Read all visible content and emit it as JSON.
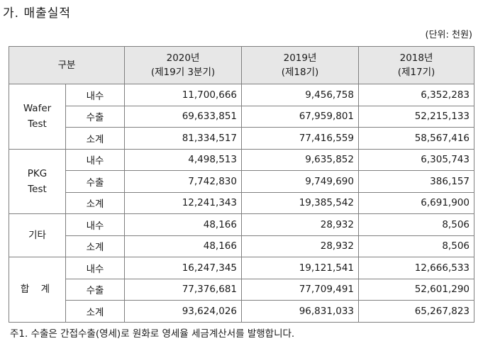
{
  "title": "가. 매출실적",
  "unit": "(단위: 천원)",
  "header": {
    "category": "구분",
    "years": [
      {
        "year": "2020년",
        "period": "(제19기 3분기)"
      },
      {
        "year": "2019년",
        "period": "(제18기)"
      },
      {
        "year": "2018년",
        "period": "(제17기)"
      }
    ]
  },
  "groups": [
    {
      "label_line1": "Wafer",
      "label_line2": "Test",
      "rows": [
        {
          "sub": "내수",
          "v2020": "11,700,666",
          "v2019": "9,456,758",
          "v2018": "6,352,283"
        },
        {
          "sub": "수출",
          "v2020": "69,633,851",
          "v2019": "67,959,801",
          "v2018": "52,215,133"
        },
        {
          "sub": "소계",
          "v2020": "81,334,517",
          "v2019": "77,416,559",
          "v2018": "58,567,416"
        }
      ]
    },
    {
      "label_line1": "PKG",
      "label_line2": "Test",
      "rows": [
        {
          "sub": "내수",
          "v2020": "4,498,513",
          "v2019": "9,635,852",
          "v2018": "6,305,743"
        },
        {
          "sub": "수출",
          "v2020": "7,742,830",
          "v2019": "9,749,690",
          "v2018": "386,157"
        },
        {
          "sub": "소계",
          "v2020": "12,241,343",
          "v2019": "19,385,542",
          "v2018": "6,691,900"
        }
      ]
    },
    {
      "label_line1": "기타",
      "label_line2": "",
      "rows": [
        {
          "sub": "내수",
          "v2020": "48,166",
          "v2019": "28,932",
          "v2018": "8,506"
        },
        {
          "sub": "소계",
          "v2020": "48,166",
          "v2019": "28,932",
          "v2018": "8,506"
        }
      ]
    },
    {
      "label_line1": "합 계",
      "label_line2": "",
      "rows": [
        {
          "sub": "내수",
          "v2020": "16,247,345",
          "v2019": "19,121,541",
          "v2018": "12,666,533"
        },
        {
          "sub": "수출",
          "v2020": "77,376,681",
          "v2019": "77,709,491",
          "v2018": "52,601,290"
        },
        {
          "sub": "소계",
          "v2020": "93,624,026",
          "v2019": "96,831,033",
          "v2018": "65,267,823"
        }
      ]
    }
  ],
  "footnote": "주1. 수출은 간접수출(영세)로 원화로 영세율 세금계산서를 발행합니다."
}
